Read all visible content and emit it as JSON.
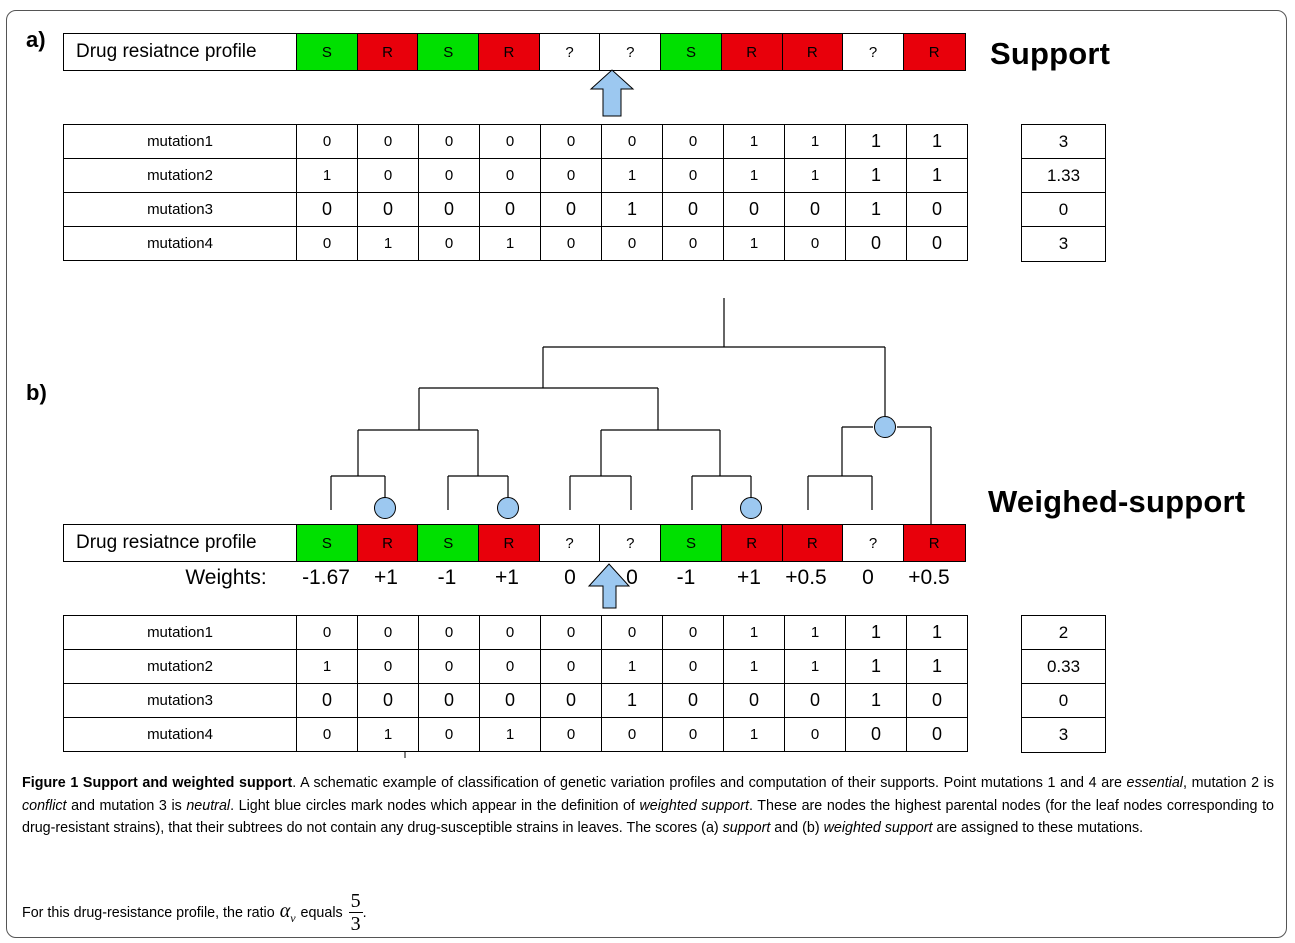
{
  "panel_a": {
    "label": "a)",
    "title": "Support",
    "profile_label": "Drug resiatnce profile",
    "profile": [
      "S",
      "R",
      "S",
      "R",
      "?",
      "?",
      "S",
      "R",
      "R",
      "?",
      "R"
    ],
    "rows": [
      {
        "name": "mutation1",
        "values": [
          "0",
          "0",
          "0",
          "0",
          "0",
          "0",
          "0",
          "1",
          "1",
          "1",
          "1"
        ]
      },
      {
        "name": "mutation2",
        "values": [
          "1",
          "0",
          "0",
          "0",
          "0",
          "1",
          "0",
          "1",
          "1",
          "1",
          "1"
        ]
      },
      {
        "name": "mutation3",
        "values": [
          "0",
          "0",
          "0",
          "0",
          "0",
          "1",
          "0",
          "0",
          "0",
          "1",
          "0"
        ]
      },
      {
        "name": "mutation4",
        "values": [
          "0",
          "1",
          "0",
          "1",
          "0",
          "0",
          "0",
          "1",
          "0",
          "0",
          "0"
        ]
      }
    ],
    "scores": [
      "3",
      "1.33",
      "0",
      "3"
    ]
  },
  "panel_b": {
    "label": "b)",
    "title": "Weighed-support",
    "profile_label": "Drug resiatnce profile",
    "profile": [
      "S",
      "R",
      "S",
      "R",
      "?",
      "?",
      "S",
      "R",
      "R",
      "?",
      "R"
    ],
    "weights_label": "Weights:",
    "weights": [
      "-1.67",
      "+1",
      "-1",
      "+1",
      "0",
      "0",
      "-1",
      "+1",
      "+0.5",
      "0",
      "+0.5"
    ],
    "rows": [
      {
        "name": "mutation1",
        "values": [
          "0",
          "0",
          "0",
          "0",
          "0",
          "0",
          "0",
          "1",
          "1",
          "1",
          "1"
        ]
      },
      {
        "name": "mutation2",
        "values": [
          "1",
          "0",
          "0",
          "0",
          "0",
          "1",
          "0",
          "1",
          "1",
          "1",
          "1"
        ]
      },
      {
        "name": "mutation3",
        "values": [
          "0",
          "0",
          "0",
          "0",
          "0",
          "1",
          "0",
          "0",
          "0",
          "1",
          "0"
        ]
      },
      {
        "name": "mutation4",
        "values": [
          "0",
          "1",
          "0",
          "1",
          "0",
          "0",
          "0",
          "1",
          "0",
          "0",
          "0"
        ]
      }
    ],
    "scores": [
      "2",
      "0.33",
      "0",
      "3"
    ]
  },
  "caption": {
    "figure_label": "Figure 1 Support and weighted support",
    "text_1": ". A schematic example of classification of genetic variation profiles and computation of their supports. Point mutations 1 and 4 are ",
    "essential": "essential",
    "text_2": ", mutation 2 is ",
    "conflict": "conflict",
    "text_3": " and mutation 3 is ",
    "neutral": "neutral",
    "text_4": ". Light blue circles mark nodes which appear in the definition of ",
    "weighted_support_1": "weighted support",
    "text_5": ". These are nodes the highest parental nodes (for the leaf nodes corresponding to drug-resistant strains), that their subtrees do not contain any drug-susceptible strains in leaves. The scores (a) ",
    "support": "support",
    "text_6": " and (b) ",
    "weighted_support_2": "weighted support",
    "text_7": " are assigned to these mutations.",
    "ratio_text_1": "For this drug-resistance profile, the ratio",
    "ratio_symbol": "α",
    "ratio_sub": "v",
    "ratio_text_2": "equals",
    "ratio_num": "5",
    "ratio_den": "3"
  },
  "colors": {
    "susceptible": "#00e000",
    "resistant": "#e8000b",
    "arrow": "#9cc8f0",
    "node": "#9cc8f0"
  }
}
